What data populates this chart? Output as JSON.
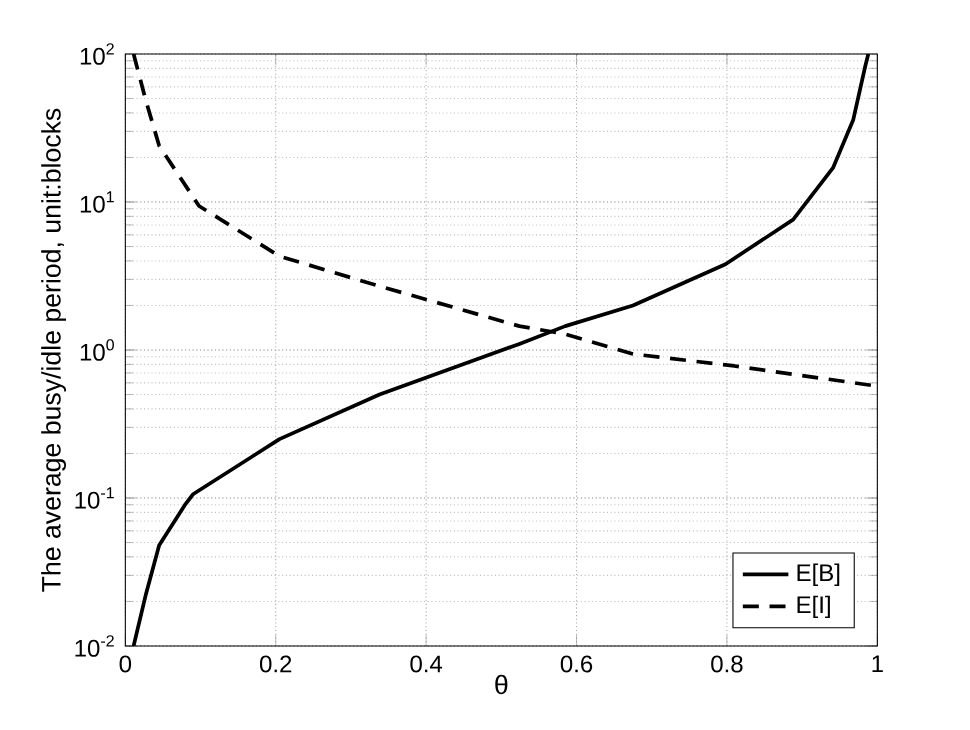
{
  "chart_data": {
    "type": "line",
    "xlabel": "θ",
    "ylabel": "The average busy/idle period, unit:blocks",
    "log": "y",
    "grid": true,
    "legend": "bottom right",
    "xlim": [
      0,
      1
    ],
    "ylim": [
      0.01,
      100
    ],
    "xticks": [
      0,
      0.2,
      0.4,
      0.6,
      0.8,
      1
    ],
    "yticks": [
      {
        "value": 0.01,
        "label": "10$^{-2}$"
      },
      {
        "value": 0.1,
        "label": "10$^{-1}$"
      },
      {
        "value": 1,
        "label": "10$^{0}$"
      },
      {
        "value": 10,
        "label": "10$^{1}$"
      },
      {
        "value": 100,
        "label": "10$^{2}$"
      }
    ],
    "series": [
      {
        "name": "E[B]",
        "color": "#000000",
        "line_style": "solid",
        "x": [
          0.011,
          0.027,
          0.045,
          0.08,
          0.09,
          0.205,
          0.338,
          0.524,
          0.585,
          0.675,
          0.798,
          0.888,
          0.941,
          0.968,
          0.984,
          0.988
        ],
        "values": [
          0.01,
          0.022,
          0.048,
          0.091,
          0.106,
          0.25,
          0.5,
          1.1,
          1.45,
          2.0,
          3.8,
          7.6,
          17,
          36,
          83,
          100
        ]
      },
      {
        "name": "E[I]",
        "color": "#000000",
        "line_style": "dashed",
        "x": [
          0.011,
          0.027,
          0.045,
          0.098,
          0.205,
          0.338,
          0.524,
          0.585,
          0.675,
          0.81,
          1.0
        ],
        "values": [
          100,
          49,
          24,
          9.4,
          4.3,
          2.7,
          1.45,
          1.28,
          0.94,
          0.78,
          0.57
        ]
      }
    ]
  }
}
